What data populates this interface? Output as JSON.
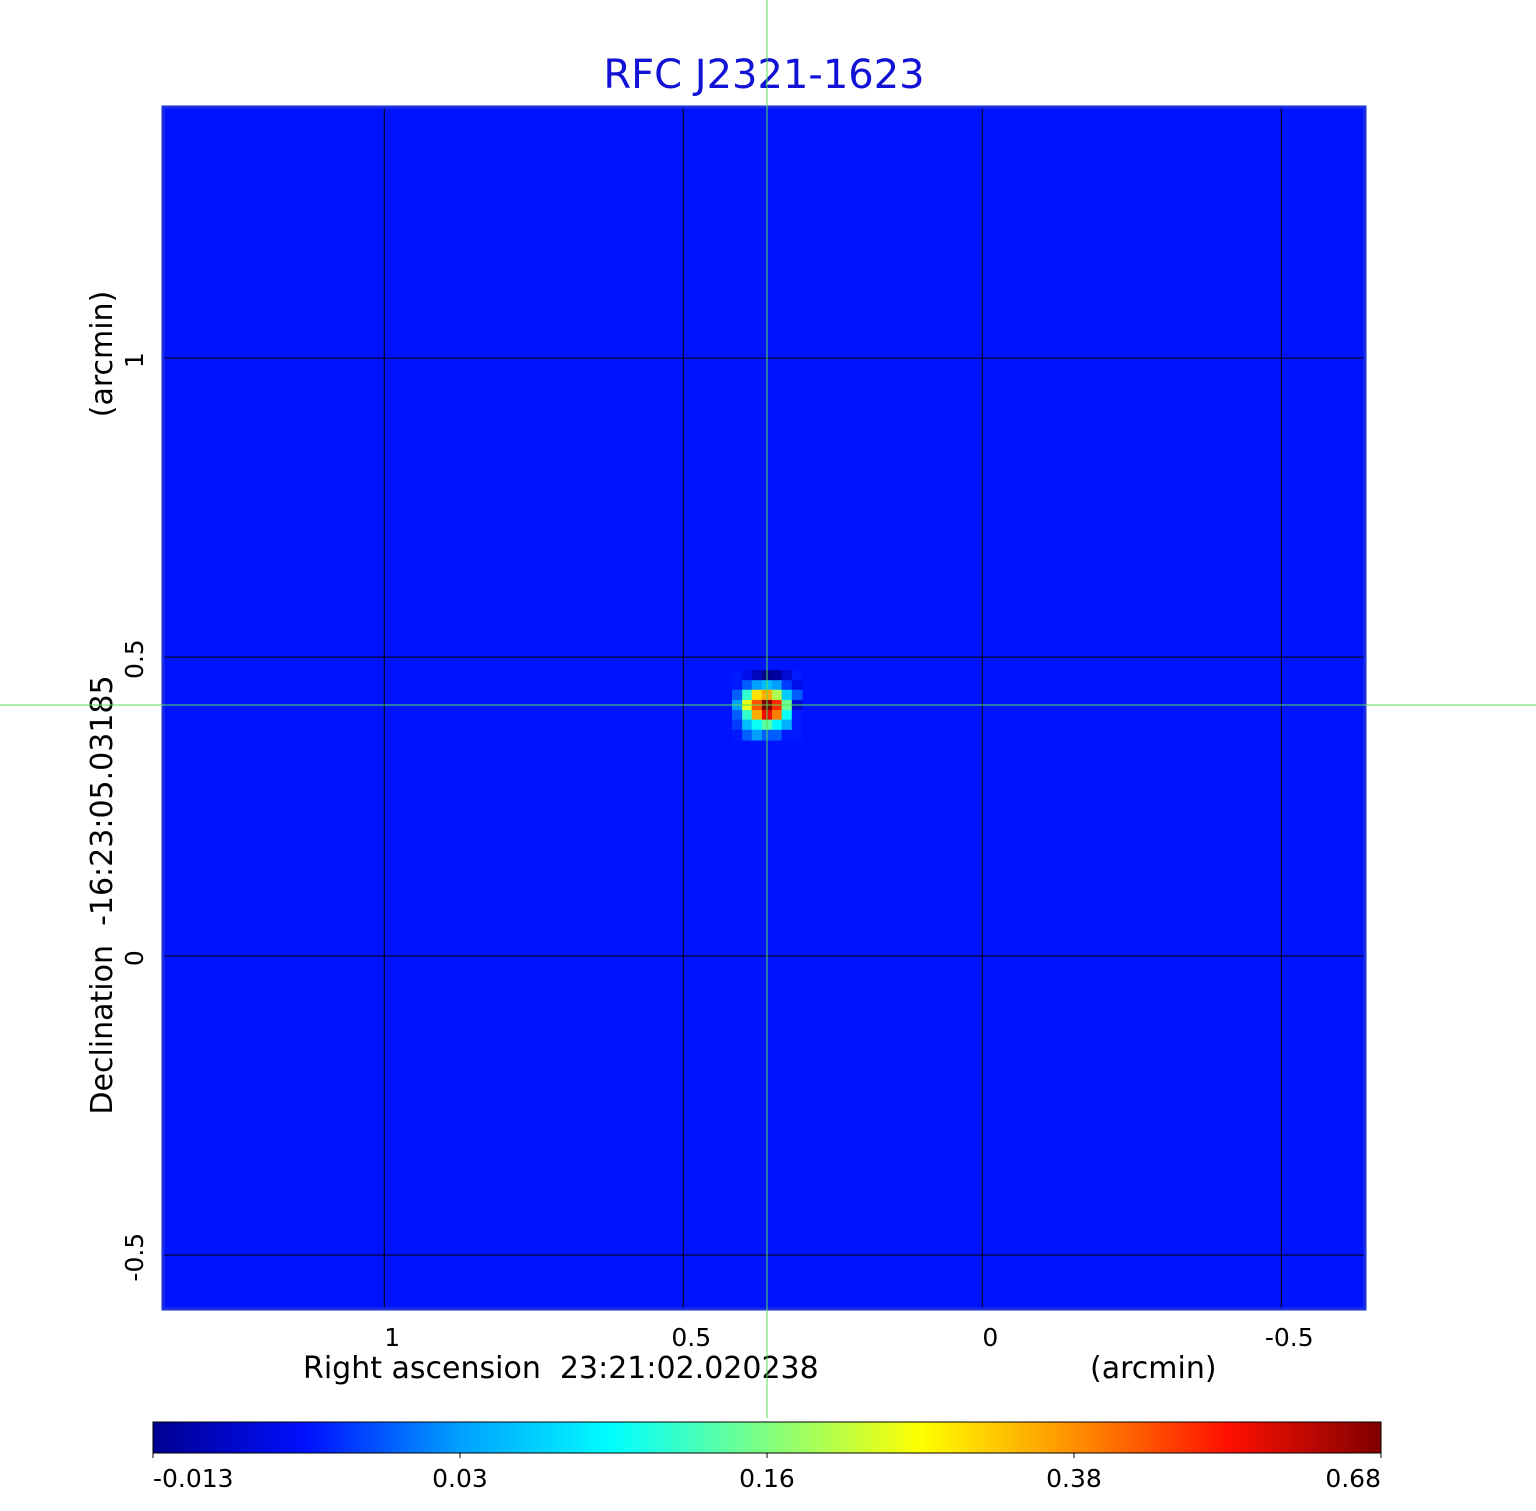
{
  "chart_data": {
    "type": "heatmap",
    "title": "RFC J2321-1623",
    "x_label": "Right ascension  23:21:02.020238",
    "x_unit": "(arcmin)",
    "y_label": "Declination  -16:23:05.03185",
    "y_unit": "(arcmin)",
    "xlim": [
      1.37,
      -0.64
    ],
    "ylim": [
      -0.59,
      1.42
    ],
    "xticks": [
      1.0,
      0.5,
      0.0,
      -0.5
    ],
    "yticks": [
      1.0,
      0.5,
      0.0,
      -0.5
    ],
    "grid": true,
    "background": 0.009,
    "x": [
      0.41,
      0.393,
      0.377,
      0.36,
      0.343,
      0.327,
      0.31
    ],
    "y": [
      0.47,
      0.453,
      0.437,
      0.42,
      0.403,
      0.387,
      0.37
    ],
    "values": [
      [
        0.01,
        0.005,
        -0.005,
        -0.013,
        -0.01,
        0.0,
        0.01
      ],
      [
        0.01,
        0.02,
        0.03,
        0.05,
        0.03,
        0.015,
        0.005
      ],
      [
        0.02,
        0.12,
        0.3,
        0.35,
        0.2,
        0.06,
        0.02
      ],
      [
        0.03,
        0.25,
        0.45,
        0.68,
        0.5,
        0.15,
        0.0
      ],
      [
        0.02,
        0.12,
        0.35,
        0.55,
        0.4,
        0.1,
        0.01
      ],
      [
        0.015,
        0.05,
        0.1,
        0.14,
        0.09,
        0.04,
        0.01
      ],
      [
        0.01,
        0.02,
        0.03,
        0.02,
        0.02,
        0.01,
        0.01
      ]
    ],
    "crosshair": {
      "x": 0.36,
      "y": 0.42
    },
    "colorbar": {
      "lim": [
        -0.013,
        0.68
      ],
      "ticks": [
        -0.013,
        0.03,
        0.16,
        0.38,
        0.68
      ],
      "colors": [
        "#00008f",
        "#0010ff",
        "#00a0ff",
        "#00ffff",
        "#80ff80",
        "#ffff00",
        "#ff9000",
        "#ff1000",
        "#800000"
      ]
    }
  }
}
